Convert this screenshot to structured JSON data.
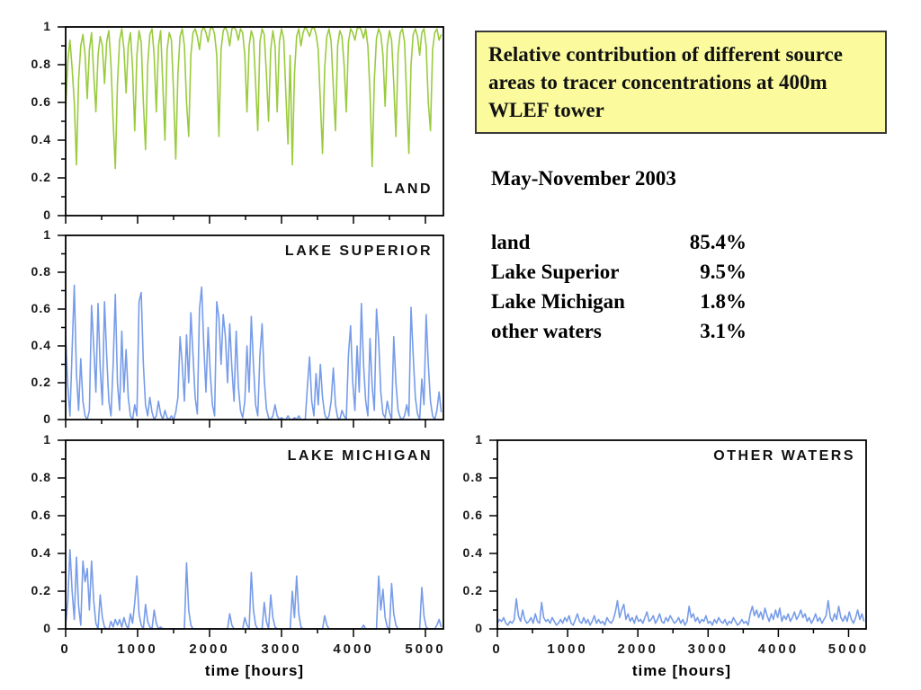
{
  "title_box": {
    "text": "Relative contribution of different source areas to tracer concentrations at 400m WLEF tower",
    "bg": "#fbfb9e",
    "border": "#3a3a3a"
  },
  "subtitle": "May-November 2003",
  "stats": {
    "rows": [
      {
        "label": "land",
        "value": "85.4%"
      },
      {
        "label": "Lake Superior",
        "value": "9.5%"
      },
      {
        "label": "Lake Michigan",
        "value": "1.8%"
      },
      {
        "label": "other waters",
        "value": "3.1%"
      }
    ]
  },
  "colors": {
    "land": "#9acb3d",
    "water": "#779ce9",
    "axis": "#000000"
  },
  "axes": {
    "y_ticks": [
      "0",
      "0.2",
      "0.4",
      "0.6",
      "0.8",
      "1"
    ],
    "x_ticks": [
      "0",
      "1000",
      "2000",
      "3000",
      "4000",
      "5000"
    ],
    "x_tick_values": [
      0,
      1000,
      2000,
      3000,
      4000,
      5000
    ],
    "x_axis_label": "time [hours]",
    "xlim": [
      0,
      5250
    ],
    "ylim": [
      0,
      1
    ],
    "x_major": 1000,
    "x_minor": 500,
    "y_major": 0.2,
    "y_minor": 0.1
  },
  "chart_data": [
    {
      "type": "line",
      "label": "LAND",
      "color_key": "land",
      "xlabel": "",
      "ylabel": "",
      "xlim": [
        0,
        5250
      ],
      "ylim": [
        0,
        1
      ],
      "x0": 0,
      "dx": 30,
      "y": [
        0.55,
        0.82,
        0.93,
        0.78,
        0.6,
        0.27,
        0.72,
        0.9,
        0.96,
        0.85,
        0.62,
        0.88,
        0.97,
        0.75,
        0.55,
        0.85,
        0.95,
        0.9,
        0.7,
        0.92,
        0.98,
        0.8,
        0.5,
        0.25,
        0.7,
        0.93,
        0.99,
        0.88,
        0.65,
        0.9,
        0.97,
        0.78,
        0.45,
        0.85,
        0.98,
        0.92,
        0.6,
        0.35,
        0.8,
        0.96,
        0.99,
        0.85,
        0.55,
        0.9,
        0.98,
        0.7,
        0.4,
        0.88,
        0.97,
        0.93,
        0.65,
        0.3,
        0.75,
        0.95,
        0.99,
        0.9,
        0.6,
        0.42,
        0.85,
        0.97,
        0.99,
        0.95,
        0.88,
        0.98,
        1,
        0.97,
        0.92,
        0.99,
        1,
        0.96,
        0.85,
        0.42,
        0.88,
        0.98,
        1,
        0.97,
        0.9,
        0.99,
        1,
        0.98,
        0.93,
        0.99,
        0.97,
        0.85,
        0.55,
        0.9,
        0.98,
        0.94,
        0.7,
        0.45,
        0.92,
        0.99,
        0.96,
        0.75,
        0.5,
        0.88,
        0.98,
        0.9,
        0.55,
        0.92,
        0.99,
        0.94,
        0.65,
        0.38,
        0.85,
        0.27,
        0.75,
        0.95,
        0.99,
        0.9,
        0.97,
        1,
        0.98,
        0.95,
        0.99,
        1,
        0.96,
        0.88,
        0.6,
        0.33,
        0.78,
        0.95,
        0.99,
        0.92,
        0.68,
        0.45,
        0.9,
        0.98,
        0.95,
        0.8,
        0.55,
        0.92,
        0.99,
        0.97,
        0.93,
        0.99,
        1,
        0.98,
        0.94,
        0.99,
        0.9,
        0.65,
        0.26,
        0.72,
        0.94,
        0.99,
        0.96,
        0.85,
        0.58,
        0.9,
        0.98,
        0.93,
        0.7,
        0.42,
        0.86,
        0.97,
        0.99,
        0.92,
        0.62,
        0.33,
        0.8,
        0.96,
        0.99,
        0.95,
        0.85,
        0.97,
        0.99,
        0.9,
        0.6,
        0.45,
        0.88,
        0.97,
        0.99,
        0.93,
        0.96
      ]
    },
    {
      "type": "line",
      "label": "LAKE SUPERIOR",
      "color_key": "water",
      "xlabel": "",
      "ylabel": "",
      "xlim": [
        0,
        5250
      ],
      "ylim": [
        0,
        1
      ],
      "x0": 0,
      "dx": 30,
      "y": [
        0.45,
        0.18,
        0.02,
        0.38,
        0.73,
        0.25,
        0.05,
        0.33,
        0.1,
        0.02,
        0,
        0.05,
        0.62,
        0.4,
        0.15,
        0.63,
        0.28,
        0.08,
        0.64,
        0.35,
        0.1,
        0.02,
        0.3,
        0.68,
        0.2,
        0.05,
        0.48,
        0.15,
        0.38,
        0.12,
        0.02,
        0,
        0.08,
        0.02,
        0.64,
        0.69,
        0.3,
        0.08,
        0.02,
        0.12,
        0.04,
        0,
        0.02,
        0.1,
        0.03,
        0,
        0.05,
        0.01,
        0,
        0.02,
        0,
        0.04,
        0.12,
        0.45,
        0.3,
        0.1,
        0.46,
        0.2,
        0.58,
        0.35,
        0.12,
        0.03,
        0.6,
        0.72,
        0.4,
        0.15,
        0.5,
        0.25,
        0.08,
        0.02,
        0.64,
        0.55,
        0.3,
        0.57,
        0.45,
        0.2,
        0.52,
        0.28,
        0.1,
        0.48,
        0.18,
        0.05,
        0.01,
        0.1,
        0.4,
        0.15,
        0.56,
        0.3,
        0.08,
        0.02,
        0.35,
        0.52,
        0.22,
        0.06,
        0.01,
        0,
        0.02,
        0.08,
        0.02,
        0,
        0.01,
        0,
        0,
        0.02,
        0,
        0,
        0.01,
        0,
        0.02,
        0,
        0,
        0,
        0.18,
        0.34,
        0.1,
        0.02,
        0.25,
        0.08,
        0.3,
        0.12,
        0.03,
        0,
        0.02,
        0.1,
        0.28,
        0.08,
        0.01,
        0,
        0.05,
        0.02,
        0,
        0.35,
        0.51,
        0.2,
        0.05,
        0.4,
        0.15,
        0.63,
        0.3,
        0.1,
        0.02,
        0.44,
        0.18,
        0.05,
        0.6,
        0.43,
        0.15,
        0.03,
        0.01,
        0.1,
        0.04,
        0,
        0.45,
        0.2,
        0.05,
        0.01,
        0,
        0.02,
        0.08,
        0.02,
        0.61,
        0.35,
        0.12,
        0.03,
        0,
        0.22,
        0.08,
        0.57,
        0.3,
        0.1,
        0.02,
        0,
        0.05,
        0.15,
        0.04
      ]
    },
    {
      "type": "line",
      "label": "LAKE MICHIGAN",
      "color_key": "water",
      "xlabel": "time [hours]",
      "ylabel": "",
      "xlim": [
        0,
        5250
      ],
      "ylim": [
        0,
        1
      ],
      "x0": 0,
      "dx": 30,
      "y": [
        0.02,
        0.15,
        0.42,
        0.2,
        0.05,
        0.38,
        0.12,
        0.02,
        0.36,
        0.25,
        0.32,
        0.1,
        0.36,
        0.15,
        0.03,
        0,
        0.18,
        0.06,
        0.01,
        0,
        0,
        0.04,
        0.01,
        0.05,
        0.02,
        0.05,
        0.01,
        0.06,
        0.02,
        0,
        0.08,
        0.03,
        0.14,
        0.28,
        0.08,
        0.02,
        0,
        0.13,
        0.04,
        0.01,
        0,
        0.1,
        0.03,
        0,
        0.01,
        0,
        0,
        0,
        0,
        0,
        0,
        0,
        0,
        0,
        0,
        0,
        0.35,
        0.1,
        0.02,
        0,
        0,
        0,
        0,
        0,
        0,
        0,
        0,
        0,
        0,
        0,
        0,
        0,
        0,
        0,
        0,
        0,
        0.08,
        0.02,
        0,
        0,
        0,
        0,
        0,
        0.06,
        0.02,
        0,
        0.3,
        0.1,
        0.02,
        0,
        0,
        0,
        0.14,
        0.04,
        0,
        0.18,
        0.06,
        0.01,
        0,
        0,
        0,
        0,
        0,
        0,
        0,
        0.2,
        0.06,
        0.28,
        0.08,
        0.01,
        0,
        0,
        0,
        0,
        0,
        0,
        0,
        0,
        0,
        0,
        0.07,
        0.02,
        0,
        0,
        0,
        0,
        0,
        0,
        0,
        0,
        0,
        0,
        0,
        0,
        0,
        0,
        0,
        0,
        0.02,
        0,
        0,
        0,
        0,
        0,
        0,
        0.28,
        0.1,
        0.21,
        0.06,
        0.01,
        0,
        0.24,
        0.08,
        0.02,
        0,
        0,
        0,
        0,
        0,
        0,
        0,
        0,
        0,
        0,
        0,
        0.22,
        0.07,
        0.01,
        0,
        0,
        0,
        0,
        0.02,
        0.05,
        0.01
      ]
    },
    {
      "type": "line",
      "label": "OTHER WATERS",
      "color_key": "water",
      "xlabel": "time [hours]",
      "ylabel": "",
      "xlim": [
        0,
        5250
      ],
      "ylim": [
        0,
        1
      ],
      "x0": 0,
      "dx": 30,
      "y": [
        0.03,
        0.05,
        0.04,
        0.06,
        0.03,
        0.02,
        0.04,
        0.03,
        0.05,
        0.16,
        0.07,
        0.04,
        0.1,
        0.05,
        0.03,
        0.04,
        0.06,
        0.03,
        0.08,
        0.04,
        0.03,
        0.14,
        0.06,
        0.04,
        0.05,
        0.03,
        0.06,
        0.04,
        0.02,
        0.03,
        0.05,
        0.03,
        0.06,
        0.04,
        0.07,
        0.03,
        0.02,
        0.05,
        0.08,
        0.04,
        0.03,
        0.06,
        0.03,
        0.05,
        0.02,
        0.04,
        0.07,
        0.03,
        0.05,
        0.03,
        0.04,
        0.02,
        0.06,
        0.04,
        0.03,
        0.05,
        0.09,
        0.15,
        0.06,
        0.1,
        0.13,
        0.05,
        0.08,
        0.04,
        0.06,
        0.03,
        0.07,
        0.04,
        0.05,
        0.03,
        0.06,
        0.09,
        0.04,
        0.05,
        0.07,
        0.03,
        0.05,
        0.08,
        0.04,
        0.03,
        0.06,
        0.04,
        0.07,
        0.05,
        0.03,
        0.04,
        0.06,
        0.03,
        0.05,
        0.02,
        0.04,
        0.12,
        0.06,
        0.08,
        0.04,
        0.06,
        0.03,
        0.05,
        0.04,
        0.07,
        0.03,
        0.04,
        0.02,
        0.05,
        0.03,
        0.06,
        0.04,
        0.03,
        0.05,
        0.02,
        0.04,
        0.03,
        0.06,
        0.04,
        0.02,
        0.03,
        0.05,
        0.03,
        0.04,
        0.02,
        0.08,
        0.12,
        0.07,
        0.1,
        0.06,
        0.09,
        0.05,
        0.11,
        0.07,
        0.04,
        0.08,
        0.05,
        0.1,
        0.06,
        0.11,
        0.04,
        0.07,
        0.05,
        0.08,
        0.04,
        0.06,
        0.09,
        0.05,
        0.07,
        0.1,
        0.06,
        0.08,
        0.04,
        0.06,
        0.03,
        0.05,
        0.08,
        0.04,
        0.06,
        0.03,
        0.05,
        0.07,
        0.15,
        0.06,
        0.04,
        0.08,
        0.05,
        0.12,
        0.06,
        0.04,
        0.07,
        0.04,
        0.09,
        0.05,
        0.03,
        0.06,
        0.1,
        0.05,
        0.08,
        0.04
      ]
    }
  ]
}
